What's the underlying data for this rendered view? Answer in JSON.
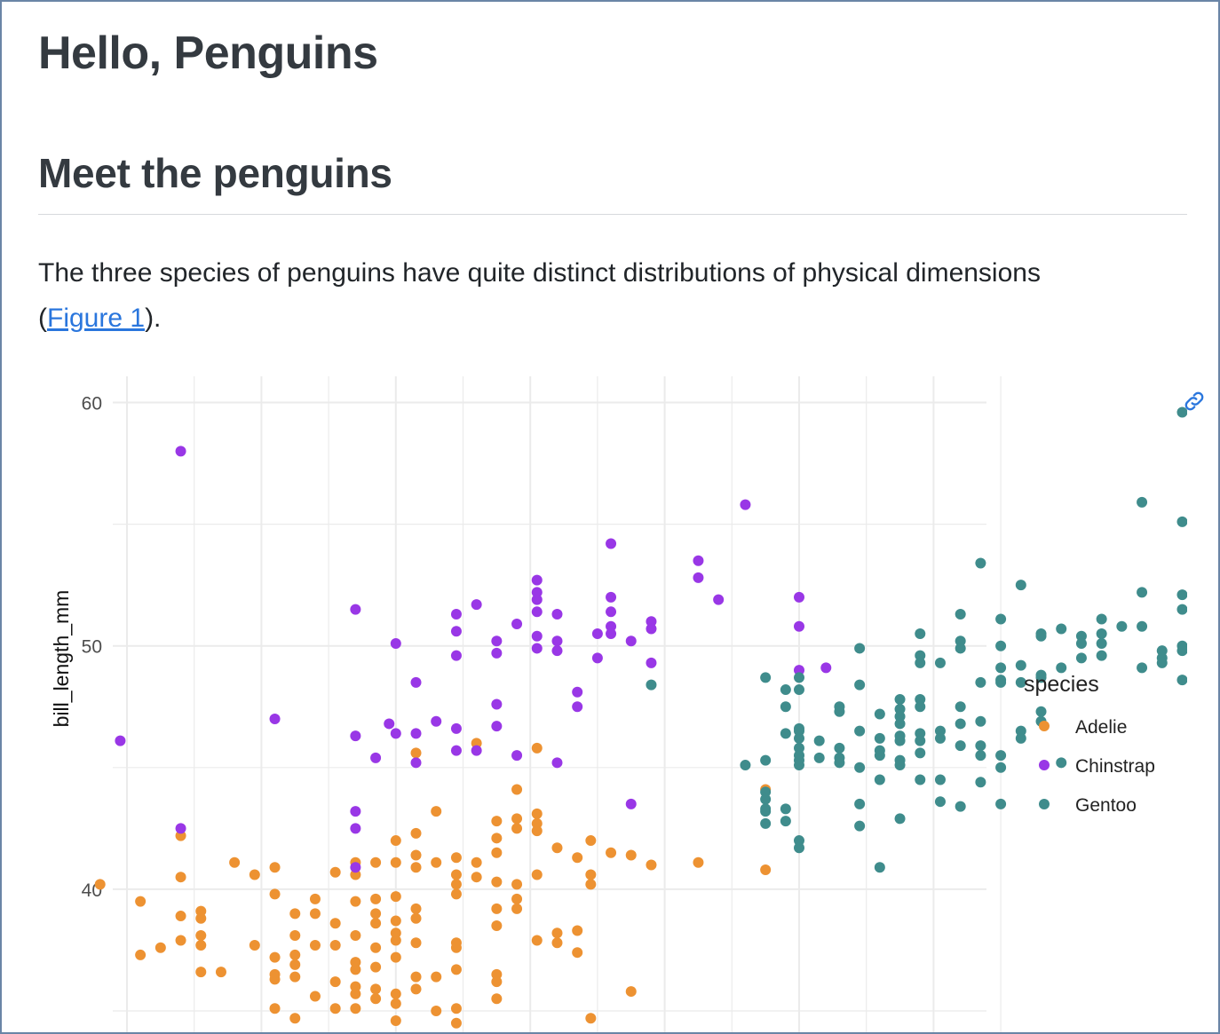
{
  "page": {
    "title": "Hello, Penguins",
    "section_heading": "Meet the penguins",
    "paragraph_before": "The three species of penguins have quite distinct distributions of physical dimensions (",
    "figure_link": "Figure 1",
    "paragraph_after": ").",
    "anchor_icon": "link-icon"
  },
  "colors": {
    "text": "#343a40",
    "link": "#2a76dd",
    "border": "#6a85a6",
    "grid": "#ebebeb",
    "Adelie": "#ed9232",
    "Chinstrap": "#9937e6",
    "Gentoo": "#3f8c8c"
  },
  "chart_data": {
    "type": "scatter",
    "xlabel": "",
    "ylabel": "bill_length_mm",
    "ylim": [
      34.2,
      60.9
    ],
    "y_ticks": [
      "40",
      "50",
      "60"
    ],
    "grid": true,
    "legend": {
      "title": "species",
      "placement": "right",
      "entries": [
        "Adelie",
        "Chinstrap",
        "Gentoo"
      ]
    },
    "series": [
      {
        "name": "Adelie",
        "points": [
          [
            -2.7,
            37.9
          ],
          [
            -1.7,
            37.8
          ],
          [
            -0.4,
            40.2
          ],
          [
            0.2,
            39.5
          ],
          [
            0.2,
            37.3
          ],
          [
            0.5,
            37.6
          ],
          [
            0.8,
            42.2
          ],
          [
            0.8,
            40.5
          ],
          [
            0.8,
            38.9
          ],
          [
            0.8,
            37.9
          ],
          [
            1.1,
            39.1
          ],
          [
            1.1,
            38.8
          ],
          [
            1.1,
            38.1
          ],
          [
            1.1,
            37.7
          ],
          [
            1.1,
            36.6
          ],
          [
            1.4,
            36.6
          ],
          [
            1.6,
            41.1
          ],
          [
            1.9,
            40.6
          ],
          [
            1.9,
            37.7
          ],
          [
            2.2,
            40.9
          ],
          [
            2.2,
            39.8
          ],
          [
            2.2,
            37.2
          ],
          [
            2.2,
            36.5
          ],
          [
            2.2,
            36.3
          ],
          [
            2.2,
            35.1
          ],
          [
            2.5,
            39.0
          ],
          [
            2.5,
            38.1
          ],
          [
            2.5,
            37.3
          ],
          [
            2.5,
            36.9
          ],
          [
            2.5,
            36.4
          ],
          [
            2.5,
            34.7
          ],
          [
            2.8,
            39.6
          ],
          [
            2.8,
            39.0
          ],
          [
            2.8,
            37.7
          ],
          [
            2.8,
            35.6
          ],
          [
            3.1,
            40.7
          ],
          [
            3.1,
            38.6
          ],
          [
            3.1,
            37.7
          ],
          [
            3.1,
            36.2
          ],
          [
            3.1,
            35.1
          ],
          [
            3.4,
            41.1
          ],
          [
            3.4,
            40.6
          ],
          [
            3.4,
            39.5
          ],
          [
            3.4,
            38.1
          ],
          [
            3.4,
            37.0
          ],
          [
            3.4,
            36.7
          ],
          [
            3.4,
            36.0
          ],
          [
            3.4,
            35.7
          ],
          [
            3.4,
            35.1
          ],
          [
            3.7,
            41.1
          ],
          [
            3.7,
            39.6
          ],
          [
            3.7,
            39.0
          ],
          [
            3.7,
            38.6
          ],
          [
            3.7,
            37.6
          ],
          [
            3.7,
            36.8
          ],
          [
            3.7,
            35.9
          ],
          [
            3.7,
            35.5
          ],
          [
            4.0,
            42.0
          ],
          [
            4.0,
            41.1
          ],
          [
            4.0,
            39.7
          ],
          [
            4.0,
            38.7
          ],
          [
            4.0,
            38.2
          ],
          [
            4.0,
            37.9
          ],
          [
            4.0,
            37.2
          ],
          [
            4.0,
            35.7
          ],
          [
            4.0,
            35.3
          ],
          [
            4.0,
            34.6
          ],
          [
            4.3,
            45.6
          ],
          [
            4.3,
            42.3
          ],
          [
            4.3,
            41.4
          ],
          [
            4.3,
            40.9
          ],
          [
            4.3,
            39.2
          ],
          [
            4.3,
            38.8
          ],
          [
            4.3,
            37.8
          ],
          [
            4.3,
            36.4
          ],
          [
            4.3,
            35.9
          ],
          [
            4.6,
            43.2
          ],
          [
            4.6,
            41.1
          ],
          [
            4.6,
            36.4
          ],
          [
            4.6,
            35.0
          ],
          [
            4.9,
            41.3
          ],
          [
            4.9,
            40.6
          ],
          [
            4.9,
            40.2
          ],
          [
            4.9,
            39.8
          ],
          [
            4.9,
            37.8
          ],
          [
            4.9,
            37.6
          ],
          [
            4.9,
            36.7
          ],
          [
            4.9,
            35.1
          ],
          [
            4.9,
            34.5
          ],
          [
            5.2,
            46.0
          ],
          [
            5.2,
            41.1
          ],
          [
            5.2,
            40.5
          ],
          [
            5.5,
            42.8
          ],
          [
            5.5,
            42.1
          ],
          [
            5.5,
            41.5
          ],
          [
            5.5,
            40.3
          ],
          [
            5.5,
            39.2
          ],
          [
            5.5,
            38.5
          ],
          [
            5.5,
            36.5
          ],
          [
            5.5,
            36.2
          ],
          [
            5.5,
            35.5
          ],
          [
            5.8,
            44.1
          ],
          [
            5.8,
            42.9
          ],
          [
            5.8,
            42.5
          ],
          [
            5.8,
            40.2
          ],
          [
            5.8,
            39.6
          ],
          [
            5.8,
            39.2
          ],
          [
            6.1,
            45.8
          ],
          [
            6.1,
            43.1
          ],
          [
            6.1,
            42.7
          ],
          [
            6.1,
            42.4
          ],
          [
            6.1,
            40.6
          ],
          [
            6.1,
            37.9
          ],
          [
            6.4,
            41.7
          ],
          [
            6.4,
            38.2
          ],
          [
            6.4,
            37.8
          ],
          [
            6.7,
            41.3
          ],
          [
            6.7,
            38.3
          ],
          [
            6.7,
            37.4
          ],
          [
            6.9,
            42.0
          ],
          [
            6.9,
            40.6
          ],
          [
            6.9,
            40.2
          ],
          [
            6.9,
            34.7
          ],
          [
            7.2,
            41.5
          ],
          [
            7.5,
            41.4
          ],
          [
            7.5,
            35.8
          ],
          [
            7.8,
            41.0
          ],
          [
            8.5,
            41.1
          ],
          [
            9.5,
            40.8
          ],
          [
            9.5,
            44.1
          ]
        ]
      },
      {
        "name": "Chinstrap",
        "points": [
          [
            -0.1,
            46.1
          ],
          [
            0.8,
            42.5
          ],
          [
            0.8,
            58.0
          ],
          [
            2.2,
            47.0
          ],
          [
            3.4,
            51.5
          ],
          [
            3.4,
            46.3
          ],
          [
            3.4,
            43.2
          ],
          [
            3.4,
            42.5
          ],
          [
            3.4,
            40.9
          ],
          [
            3.7,
            45.4
          ],
          [
            3.9,
            46.8
          ],
          [
            4.0,
            50.1
          ],
          [
            4.0,
            46.4
          ],
          [
            4.3,
            48.5
          ],
          [
            4.3,
            46.4
          ],
          [
            4.3,
            45.2
          ],
          [
            4.6,
            46.9
          ],
          [
            4.9,
            51.3
          ],
          [
            4.9,
            50.6
          ],
          [
            4.9,
            49.6
          ],
          [
            4.9,
            46.6
          ],
          [
            4.9,
            45.7
          ],
          [
            5.2,
            51.7
          ],
          [
            5.2,
            45.7
          ],
          [
            5.5,
            50.2
          ],
          [
            5.5,
            49.7
          ],
          [
            5.5,
            47.6
          ],
          [
            5.5,
            46.7
          ],
          [
            5.8,
            50.9
          ],
          [
            5.8,
            45.5
          ],
          [
            6.1,
            52.7
          ],
          [
            6.1,
            52.2
          ],
          [
            6.1,
            51.9
          ],
          [
            6.1,
            51.4
          ],
          [
            6.1,
            50.4
          ],
          [
            6.1,
            49.9
          ],
          [
            6.4,
            51.3
          ],
          [
            6.4,
            50.2
          ],
          [
            6.4,
            49.8
          ],
          [
            6.4,
            45.2
          ],
          [
            6.7,
            48.1
          ],
          [
            6.7,
            47.5
          ],
          [
            7.0,
            50.5
          ],
          [
            7.0,
            49.5
          ],
          [
            7.2,
            54.2
          ],
          [
            7.2,
            52.0
          ],
          [
            7.2,
            51.4
          ],
          [
            7.2,
            50.8
          ],
          [
            7.2,
            50.5
          ],
          [
            7.5,
            50.2
          ],
          [
            7.5,
            43.5
          ],
          [
            7.8,
            51.0
          ],
          [
            7.8,
            50.7
          ],
          [
            7.8,
            49.3
          ],
          [
            8.5,
            53.5
          ],
          [
            8.5,
            52.8
          ],
          [
            8.8,
            51.9
          ],
          [
            9.2,
            55.8
          ],
          [
            10.0,
            52.0
          ],
          [
            10.0,
            50.8
          ],
          [
            10.0,
            49.0
          ],
          [
            10.4,
            49.1
          ]
        ]
      },
      {
        "name": "Gentoo",
        "points": [
          [
            7.8,
            48.4
          ],
          [
            9.2,
            45.1
          ],
          [
            9.5,
            48.7
          ],
          [
            9.5,
            45.3
          ],
          [
            9.5,
            44.0
          ],
          [
            9.5,
            43.7
          ],
          [
            9.5,
            43.3
          ],
          [
            9.5,
            43.2
          ],
          [
            9.5,
            42.7
          ],
          [
            9.8,
            48.2
          ],
          [
            9.8,
            47.5
          ],
          [
            9.8,
            46.4
          ],
          [
            9.8,
            43.3
          ],
          [
            9.8,
            42.8
          ],
          [
            10.0,
            48.7
          ],
          [
            10.0,
            48.2
          ],
          [
            10.0,
            46.6
          ],
          [
            10.0,
            46.5
          ],
          [
            10.0,
            46.2
          ],
          [
            10.0,
            45.8
          ],
          [
            10.0,
            45.5
          ],
          [
            10.0,
            45.3
          ],
          [
            10.0,
            45.1
          ],
          [
            10.0,
            42.0
          ],
          [
            10.0,
            41.7
          ],
          [
            10.3,
            46.1
          ],
          [
            10.3,
            45.4
          ],
          [
            10.6,
            47.5
          ],
          [
            10.6,
            47.3
          ],
          [
            10.6,
            45.8
          ],
          [
            10.6,
            45.4
          ],
          [
            10.6,
            45.2
          ],
          [
            10.9,
            49.9
          ],
          [
            10.9,
            48.4
          ],
          [
            10.9,
            46.5
          ],
          [
            10.9,
            45.0
          ],
          [
            10.9,
            43.5
          ],
          [
            10.9,
            42.6
          ],
          [
            11.2,
            47.2
          ],
          [
            11.2,
            46.2
          ],
          [
            11.2,
            45.7
          ],
          [
            11.2,
            45.5
          ],
          [
            11.2,
            44.5
          ],
          [
            11.2,
            40.9
          ],
          [
            11.5,
            47.8
          ],
          [
            11.5,
            47.4
          ],
          [
            11.5,
            47.1
          ],
          [
            11.5,
            46.8
          ],
          [
            11.5,
            46.3
          ],
          [
            11.5,
            46.1
          ],
          [
            11.5,
            45.3
          ],
          [
            11.5,
            45.1
          ],
          [
            11.5,
            42.9
          ],
          [
            11.8,
            50.5
          ],
          [
            11.8,
            49.6
          ],
          [
            11.8,
            49.3
          ],
          [
            11.8,
            47.8
          ],
          [
            11.8,
            47.5
          ],
          [
            11.8,
            46.4
          ],
          [
            11.8,
            46.1
          ],
          [
            11.8,
            45.6
          ],
          [
            11.8,
            44.5
          ],
          [
            12.1,
            49.3
          ],
          [
            12.1,
            46.5
          ],
          [
            12.1,
            46.2
          ],
          [
            12.1,
            44.5
          ],
          [
            12.1,
            43.6
          ],
          [
            12.4,
            51.3
          ],
          [
            12.4,
            50.2
          ],
          [
            12.4,
            49.9
          ],
          [
            12.4,
            47.5
          ],
          [
            12.4,
            46.8
          ],
          [
            12.4,
            45.9
          ],
          [
            12.4,
            43.4
          ],
          [
            12.7,
            53.4
          ],
          [
            12.7,
            48.5
          ],
          [
            12.7,
            46.9
          ],
          [
            12.7,
            45.9
          ],
          [
            12.7,
            45.5
          ],
          [
            12.7,
            44.4
          ],
          [
            13.0,
            51.1
          ],
          [
            13.0,
            50.0
          ],
          [
            13.0,
            49.1
          ],
          [
            13.0,
            48.6
          ],
          [
            13.0,
            48.5
          ],
          [
            13.0,
            45.5
          ],
          [
            13.0,
            45.0
          ],
          [
            13.0,
            43.5
          ],
          [
            13.3,
            52.5
          ],
          [
            13.3,
            49.2
          ],
          [
            13.3,
            48.5
          ],
          [
            13.3,
            46.5
          ],
          [
            13.3,
            46.2
          ],
          [
            13.6,
            50.5
          ],
          [
            13.6,
            50.4
          ],
          [
            13.6,
            48.8
          ],
          [
            13.6,
            48.7
          ],
          [
            13.6,
            47.3
          ],
          [
            13.6,
            46.9
          ],
          [
            13.9,
            50.7
          ],
          [
            13.9,
            49.1
          ],
          [
            13.9,
            45.2
          ],
          [
            14.2,
            50.4
          ],
          [
            14.2,
            50.1
          ],
          [
            14.2,
            49.5
          ],
          [
            14.5,
            51.1
          ],
          [
            14.5,
            50.5
          ],
          [
            14.5,
            50.1
          ],
          [
            14.5,
            49.6
          ],
          [
            14.8,
            50.8
          ],
          [
            15.1,
            55.9
          ],
          [
            15.1,
            52.2
          ],
          [
            15.1,
            50.8
          ],
          [
            15.1,
            49.1
          ],
          [
            15.4,
            49.8
          ],
          [
            15.4,
            49.5
          ],
          [
            15.4,
            49.3
          ],
          [
            15.7,
            59.6
          ],
          [
            15.7,
            55.1
          ],
          [
            15.7,
            52.1
          ],
          [
            15.7,
            51.5
          ],
          [
            15.7,
            50.0
          ],
          [
            15.7,
            49.8
          ],
          [
            15.7,
            48.6
          ],
          [
            16.0,
            54.3
          ]
        ]
      }
    ]
  }
}
